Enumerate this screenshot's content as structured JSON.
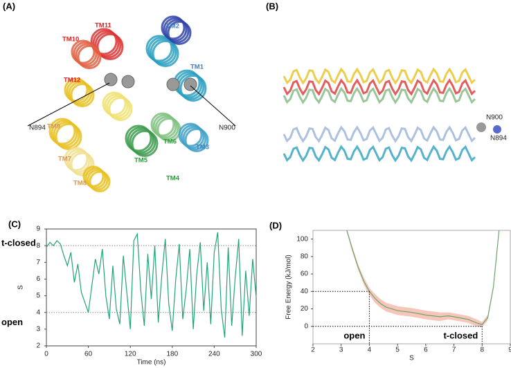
{
  "panels": [
    {
      "label": "(A)",
      "labels": [
        "TM11",
        "TM2",
        "TM10",
        "TM1",
        "TM12",
        "N894",
        "N900",
        "TM9",
        "TM6",
        "TM3",
        "TM7",
        "TM5",
        "TM4",
        "TM8"
      ]
    },
    {
      "label": "(B)",
      "labels": [
        "N900",
        "N894"
      ]
    }
  ],
  "chart_data": [
    {
      "type": "line",
      "panel_label": "(C)",
      "x_label": "Time (ns)",
      "y_label": "S",
      "color": "#1fa37a",
      "x": [
        0,
        5,
        10,
        15,
        20,
        25,
        30,
        35,
        40,
        45,
        50,
        55,
        60,
        65,
        70,
        75,
        80,
        85,
        90,
        95,
        100,
        105,
        110,
        115,
        120,
        125,
        130,
        135,
        140,
        145,
        150,
        155,
        160,
        165,
        170,
        175,
        180,
        185,
        190,
        195,
        200,
        205,
        210,
        215,
        220,
        225,
        230,
        235,
        240,
        245,
        250,
        255,
        260,
        265,
        270,
        275,
        280,
        285,
        290,
        295,
        300
      ],
      "values": [
        7.9,
        8.2,
        8.0,
        8.3,
        8.1,
        7.4,
        6.8,
        7.6,
        5.8,
        6.9,
        5.2,
        4.6,
        4.0,
        5.6,
        7.2,
        6.3,
        7.8,
        5.0,
        3.6,
        6.8,
        4.2,
        3.3,
        7.4,
        5.2,
        3.0,
        8.3,
        8.7,
        5.3,
        3.2,
        7.5,
        4.8,
        8.0,
        3.4,
        6.2,
        8.4,
        4.5,
        2.9,
        6.0,
        8.1,
        3.6,
        5.4,
        7.8,
        3.0,
        6.3,
        8.2,
        4.1,
        7.0,
        3.3,
        7.6,
        8.8,
        4.2,
        2.5,
        7.9,
        3.2,
        6.1,
        8.4,
        2.6,
        6.5,
        3.8,
        7.2,
        4.9
      ],
      "xlim": [
        0,
        300
      ],
      "ylim": [
        2,
        9
      ],
      "xticks": [
        0,
        60,
        120,
        180,
        240,
        300
      ],
      "yticks": [
        2,
        3,
        4,
        5,
        6,
        7,
        8,
        9
      ],
      "reference_lines": [
        {
          "y": 8,
          "label": "t-closed"
        },
        {
          "y": 4,
          "label": "open"
        }
      ]
    },
    {
      "type": "band",
      "panel_label": "(D)",
      "x_label": "S",
      "y_label": "Free Energy (kJ/mol)",
      "color": "#6aa56a",
      "band_color": "#f2b8a8",
      "x": [
        3.2,
        3.4,
        3.6,
        3.8,
        4.0,
        4.2,
        4.4,
        4.6,
        4.8,
        5.0,
        5.5,
        6.0,
        6.5,
        6.8,
        7.0,
        7.5,
        7.8,
        8.0,
        8.2,
        8.4,
        8.6
      ],
      "values": [
        110,
        88,
        68,
        52,
        40,
        32,
        26,
        22,
        20,
        18,
        16,
        13,
        11,
        12,
        11,
        8,
        4,
        2,
        10,
        45,
        110
      ],
      "errors": [
        2,
        3,
        3,
        4,
        4,
        5,
        5,
        5,
        5,
        5,
        5,
        5,
        5,
        4,
        4,
        4,
        4,
        3,
        3,
        2,
        2
      ],
      "xlim": [
        2,
        9
      ],
      "ylim": [
        -20,
        110
      ],
      "xticks": [
        2,
        3,
        4,
        5,
        6,
        7,
        8,
        9
      ],
      "yticks": [
        0,
        20,
        40,
        60,
        80,
        100
      ],
      "guides": [
        {
          "x": 4,
          "y": 40,
          "label": "open"
        },
        {
          "x": 8,
          "y": 0,
          "label": "t-closed"
        }
      ]
    }
  ]
}
